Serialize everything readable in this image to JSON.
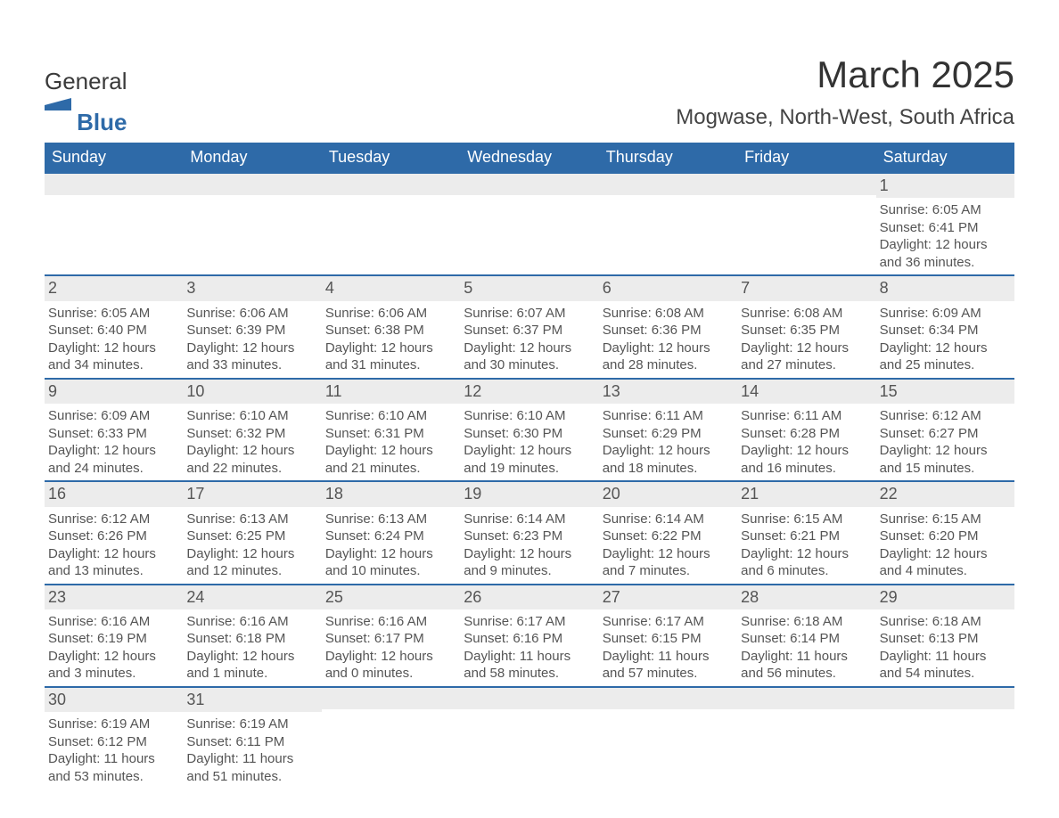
{
  "logo": {
    "word1": "General",
    "word2": "Blue"
  },
  "title": "March 2025",
  "location": "Mogwase, North-West, South Africa",
  "colors": {
    "header_bg": "#2e6aa8",
    "header_text": "#ffffff",
    "daynum_bg": "#ececec",
    "body_text": "#555555",
    "border": "#2e6aa8"
  },
  "typography": {
    "title_fontsize": 42,
    "location_fontsize": 24,
    "dow_fontsize": 18,
    "daynum_fontsize": 18,
    "body_fontsize": 15
  },
  "layout": {
    "columns": 7,
    "rows": 6
  },
  "dow": [
    "Sunday",
    "Monday",
    "Tuesday",
    "Wednesday",
    "Thursday",
    "Friday",
    "Saturday"
  ],
  "weeks": [
    [
      {
        "day": "",
        "sunrise": "",
        "sunset": "",
        "daylight1": "",
        "daylight2": ""
      },
      {
        "day": "",
        "sunrise": "",
        "sunset": "",
        "daylight1": "",
        "daylight2": ""
      },
      {
        "day": "",
        "sunrise": "",
        "sunset": "",
        "daylight1": "",
        "daylight2": ""
      },
      {
        "day": "",
        "sunrise": "",
        "sunset": "",
        "daylight1": "",
        "daylight2": ""
      },
      {
        "day": "",
        "sunrise": "",
        "sunset": "",
        "daylight1": "",
        "daylight2": ""
      },
      {
        "day": "",
        "sunrise": "",
        "sunset": "",
        "daylight1": "",
        "daylight2": ""
      },
      {
        "day": "1",
        "sunrise": "Sunrise: 6:05 AM",
        "sunset": "Sunset: 6:41 PM",
        "daylight1": "Daylight: 12 hours",
        "daylight2": "and 36 minutes."
      }
    ],
    [
      {
        "day": "2",
        "sunrise": "Sunrise: 6:05 AM",
        "sunset": "Sunset: 6:40 PM",
        "daylight1": "Daylight: 12 hours",
        "daylight2": "and 34 minutes."
      },
      {
        "day": "3",
        "sunrise": "Sunrise: 6:06 AM",
        "sunset": "Sunset: 6:39 PM",
        "daylight1": "Daylight: 12 hours",
        "daylight2": "and 33 minutes."
      },
      {
        "day": "4",
        "sunrise": "Sunrise: 6:06 AM",
        "sunset": "Sunset: 6:38 PM",
        "daylight1": "Daylight: 12 hours",
        "daylight2": "and 31 minutes."
      },
      {
        "day": "5",
        "sunrise": "Sunrise: 6:07 AM",
        "sunset": "Sunset: 6:37 PM",
        "daylight1": "Daylight: 12 hours",
        "daylight2": "and 30 minutes."
      },
      {
        "day": "6",
        "sunrise": "Sunrise: 6:08 AM",
        "sunset": "Sunset: 6:36 PM",
        "daylight1": "Daylight: 12 hours",
        "daylight2": "and 28 minutes."
      },
      {
        "day": "7",
        "sunrise": "Sunrise: 6:08 AM",
        "sunset": "Sunset: 6:35 PM",
        "daylight1": "Daylight: 12 hours",
        "daylight2": "and 27 minutes."
      },
      {
        "day": "8",
        "sunrise": "Sunrise: 6:09 AM",
        "sunset": "Sunset: 6:34 PM",
        "daylight1": "Daylight: 12 hours",
        "daylight2": "and 25 minutes."
      }
    ],
    [
      {
        "day": "9",
        "sunrise": "Sunrise: 6:09 AM",
        "sunset": "Sunset: 6:33 PM",
        "daylight1": "Daylight: 12 hours",
        "daylight2": "and 24 minutes."
      },
      {
        "day": "10",
        "sunrise": "Sunrise: 6:10 AM",
        "sunset": "Sunset: 6:32 PM",
        "daylight1": "Daylight: 12 hours",
        "daylight2": "and 22 minutes."
      },
      {
        "day": "11",
        "sunrise": "Sunrise: 6:10 AM",
        "sunset": "Sunset: 6:31 PM",
        "daylight1": "Daylight: 12 hours",
        "daylight2": "and 21 minutes."
      },
      {
        "day": "12",
        "sunrise": "Sunrise: 6:10 AM",
        "sunset": "Sunset: 6:30 PM",
        "daylight1": "Daylight: 12 hours",
        "daylight2": "and 19 minutes."
      },
      {
        "day": "13",
        "sunrise": "Sunrise: 6:11 AM",
        "sunset": "Sunset: 6:29 PM",
        "daylight1": "Daylight: 12 hours",
        "daylight2": "and 18 minutes."
      },
      {
        "day": "14",
        "sunrise": "Sunrise: 6:11 AM",
        "sunset": "Sunset: 6:28 PM",
        "daylight1": "Daylight: 12 hours",
        "daylight2": "and 16 minutes."
      },
      {
        "day": "15",
        "sunrise": "Sunrise: 6:12 AM",
        "sunset": "Sunset: 6:27 PM",
        "daylight1": "Daylight: 12 hours",
        "daylight2": "and 15 minutes."
      }
    ],
    [
      {
        "day": "16",
        "sunrise": "Sunrise: 6:12 AM",
        "sunset": "Sunset: 6:26 PM",
        "daylight1": "Daylight: 12 hours",
        "daylight2": "and 13 minutes."
      },
      {
        "day": "17",
        "sunrise": "Sunrise: 6:13 AM",
        "sunset": "Sunset: 6:25 PM",
        "daylight1": "Daylight: 12 hours",
        "daylight2": "and 12 minutes."
      },
      {
        "day": "18",
        "sunrise": "Sunrise: 6:13 AM",
        "sunset": "Sunset: 6:24 PM",
        "daylight1": "Daylight: 12 hours",
        "daylight2": "and 10 minutes."
      },
      {
        "day": "19",
        "sunrise": "Sunrise: 6:14 AM",
        "sunset": "Sunset: 6:23 PM",
        "daylight1": "Daylight: 12 hours",
        "daylight2": "and 9 minutes."
      },
      {
        "day": "20",
        "sunrise": "Sunrise: 6:14 AM",
        "sunset": "Sunset: 6:22 PM",
        "daylight1": "Daylight: 12 hours",
        "daylight2": "and 7 minutes."
      },
      {
        "day": "21",
        "sunrise": "Sunrise: 6:15 AM",
        "sunset": "Sunset: 6:21 PM",
        "daylight1": "Daylight: 12 hours",
        "daylight2": "and 6 minutes."
      },
      {
        "day": "22",
        "sunrise": "Sunrise: 6:15 AM",
        "sunset": "Sunset: 6:20 PM",
        "daylight1": "Daylight: 12 hours",
        "daylight2": "and 4 minutes."
      }
    ],
    [
      {
        "day": "23",
        "sunrise": "Sunrise: 6:16 AM",
        "sunset": "Sunset: 6:19 PM",
        "daylight1": "Daylight: 12 hours",
        "daylight2": "and 3 minutes."
      },
      {
        "day": "24",
        "sunrise": "Sunrise: 6:16 AM",
        "sunset": "Sunset: 6:18 PM",
        "daylight1": "Daylight: 12 hours",
        "daylight2": "and 1 minute."
      },
      {
        "day": "25",
        "sunrise": "Sunrise: 6:16 AM",
        "sunset": "Sunset: 6:17 PM",
        "daylight1": "Daylight: 12 hours",
        "daylight2": "and 0 minutes."
      },
      {
        "day": "26",
        "sunrise": "Sunrise: 6:17 AM",
        "sunset": "Sunset: 6:16 PM",
        "daylight1": "Daylight: 11 hours",
        "daylight2": "and 58 minutes."
      },
      {
        "day": "27",
        "sunrise": "Sunrise: 6:17 AM",
        "sunset": "Sunset: 6:15 PM",
        "daylight1": "Daylight: 11 hours",
        "daylight2": "and 57 minutes."
      },
      {
        "day": "28",
        "sunrise": "Sunrise: 6:18 AM",
        "sunset": "Sunset: 6:14 PM",
        "daylight1": "Daylight: 11 hours",
        "daylight2": "and 56 minutes."
      },
      {
        "day": "29",
        "sunrise": "Sunrise: 6:18 AM",
        "sunset": "Sunset: 6:13 PM",
        "daylight1": "Daylight: 11 hours",
        "daylight2": "and 54 minutes."
      }
    ],
    [
      {
        "day": "30",
        "sunrise": "Sunrise: 6:19 AM",
        "sunset": "Sunset: 6:12 PM",
        "daylight1": "Daylight: 11 hours",
        "daylight2": "and 53 minutes."
      },
      {
        "day": "31",
        "sunrise": "Sunrise: 6:19 AM",
        "sunset": "Sunset: 6:11 PM",
        "daylight1": "Daylight: 11 hours",
        "daylight2": "and 51 minutes."
      },
      {
        "day": "",
        "sunrise": "",
        "sunset": "",
        "daylight1": "",
        "daylight2": ""
      },
      {
        "day": "",
        "sunrise": "",
        "sunset": "",
        "daylight1": "",
        "daylight2": ""
      },
      {
        "day": "",
        "sunrise": "",
        "sunset": "",
        "daylight1": "",
        "daylight2": ""
      },
      {
        "day": "",
        "sunrise": "",
        "sunset": "",
        "daylight1": "",
        "daylight2": ""
      },
      {
        "day": "",
        "sunrise": "",
        "sunset": "",
        "daylight1": "",
        "daylight2": ""
      }
    ]
  ]
}
